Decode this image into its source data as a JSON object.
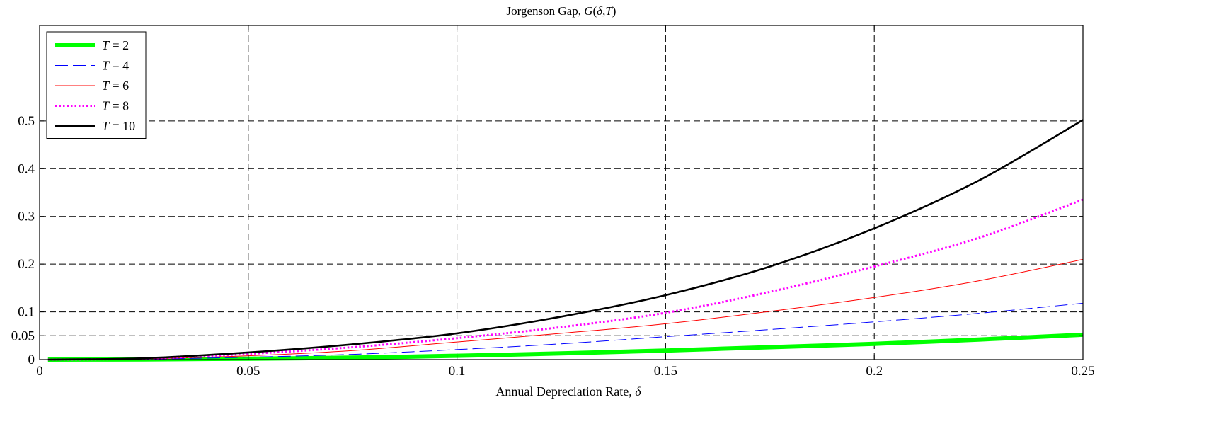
{
  "chart_data": {
    "type": "line",
    "title": "Jorgenson Gap, G(δ,T)",
    "xlabel": "Annual Depreciation Rate, δ",
    "ylabel": "",
    "xlim": [
      0,
      0.25
    ],
    "ylim": [
      0,
      0.7
    ],
    "grid": true,
    "legend_position": "top-left",
    "x_ticks": [
      0,
      0.05,
      0.1,
      0.15,
      0.2,
      0.25
    ],
    "x_tick_labels": [
      "0",
      "0.05",
      "0.1",
      "0.15",
      "0.2",
      "0.25"
    ],
    "y_ticks": [
      0,
      0.05,
      0.1,
      0.2,
      0.3,
      0.4,
      0.5
    ],
    "y_tick_labels": [
      "0",
      "0.05",
      "0.1",
      "0.2",
      "0.3",
      "0.4",
      "0.5"
    ],
    "x": [
      0.002,
      0.025,
      0.05,
      0.075,
      0.1,
      0.125,
      0.15,
      0.175,
      0.2,
      0.225,
      0.25
    ],
    "series": [
      {
        "name": "T = 2",
        "label_T": "T",
        "label_rest": " = 2",
        "color": "#00ff00",
        "style": "solid-thick",
        "values": [
          0.0,
          0.0005,
          0.002,
          0.004,
          0.008,
          0.013,
          0.019,
          0.026,
          0.033,
          0.042,
          0.052
        ]
      },
      {
        "name": "T = 4",
        "label_T": "T",
        "label_rest": " = 4",
        "color": "#0000ff",
        "style": "dashed",
        "values": [
          0.0,
          0.001,
          0.005,
          0.011,
          0.021,
          0.033,
          0.048,
          0.063,
          0.079,
          0.097,
          0.118
        ]
      },
      {
        "name": "T = 6",
        "label_T": "T",
        "label_rest": " = 6",
        "color": "#ff0000",
        "style": "solid-thin",
        "values": [
          0.0,
          0.002,
          0.008,
          0.019,
          0.037,
          0.055,
          0.075,
          0.101,
          0.13,
          0.165,
          0.21
        ]
      },
      {
        "name": "T = 8",
        "label_T": "T",
        "label_rest": " = 8",
        "color": "#ff00ff",
        "style": "dotted",
        "values": [
          0.0,
          0.002,
          0.012,
          0.026,
          0.045,
          0.068,
          0.098,
          0.142,
          0.195,
          0.255,
          0.335
        ]
      },
      {
        "name": "T = 10",
        "label_T": "T",
        "label_rest": " = 10",
        "color": "#000000",
        "style": "solid-medium",
        "values": [
          0.0,
          0.003,
          0.015,
          0.032,
          0.055,
          0.09,
          0.135,
          0.195,
          0.275,
          0.375,
          0.502
        ]
      }
    ]
  }
}
